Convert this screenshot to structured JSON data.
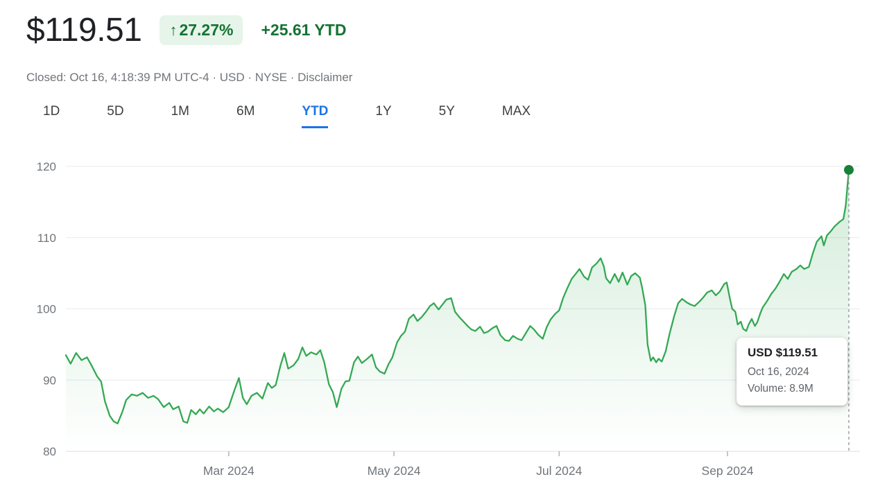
{
  "header": {
    "price": "$119.51",
    "change_badge": {
      "arrow": "↑",
      "percent": "27.27%"
    },
    "ytd_change": "+25.61 YTD",
    "status_text": "Closed: Oct 16, 4:18:39 PM UTC-4 · USD · NYSE · ",
    "disclaimer_label": "Disclaimer"
  },
  "tabs": {
    "items": [
      "1D",
      "5D",
      "1M",
      "6M",
      "YTD",
      "1Y",
      "5Y",
      "MAX"
    ],
    "active": "YTD"
  },
  "tooltip": {
    "title": "USD $119.51",
    "date": "Oct 16, 2024",
    "volume": "Volume: 8.9M"
  },
  "chart_data": {
    "type": "line",
    "title": "",
    "xlabel": "",
    "ylabel": "",
    "ylim": [
      80,
      120
    ],
    "yticks": [
      80,
      90,
      100,
      110,
      120
    ],
    "x_encoding": "fraction of YTD x-axis (Jan 2024 to Oct 16, 2024)",
    "xticks": [
      {
        "t": 0.208,
        "label": "Mar 2024"
      },
      {
        "t": 0.419,
        "label": "May 2024"
      },
      {
        "t": 0.63,
        "label": "Jul 2024"
      },
      {
        "t": 0.845,
        "label": "Sep 2024"
      }
    ],
    "grid": true,
    "legend": false,
    "colors": {
      "line": "#34a853",
      "dot": "#188038",
      "grid": "#e8eaed",
      "axis": "#dadce0",
      "axis_label": "#70757a",
      "dashed": "#9aa0a6",
      "accent_blue": "#1a73e8",
      "green_text": "#137333",
      "badge_bg": "#e6f4ea"
    },
    "last_point": {
      "t": 1.0,
      "price": 119.51,
      "date": "Oct 16, 2024",
      "volume": "8.9M"
    },
    "series": [
      {
        "name": "price",
        "points": [
          [
            0,
            93.5
          ],
          [
            0.006,
            92.3
          ],
          [
            0.013,
            93.8
          ],
          [
            0.02,
            92.8
          ],
          [
            0.027,
            93.2
          ],
          [
            0.033,
            92
          ],
          [
            0.04,
            90.5
          ],
          [
            0.045,
            89.8
          ],
          [
            0.05,
            87
          ],
          [
            0.056,
            85
          ],
          [
            0.061,
            84.2
          ],
          [
            0.066,
            83.9
          ],
          [
            0.072,
            85.5
          ],
          [
            0.077,
            87.2
          ],
          [
            0.084,
            88
          ],
          [
            0.091,
            87.8
          ],
          [
            0.098,
            88.2
          ],
          [
            0.105,
            87.5
          ],
          [
            0.112,
            87.8
          ],
          [
            0.118,
            87.3
          ],
          [
            0.125,
            86.2
          ],
          [
            0.132,
            86.8
          ],
          [
            0.137,
            85.9
          ],
          [
            0.144,
            86.3
          ],
          [
            0.15,
            84.2
          ],
          [
            0.155,
            84
          ],
          [
            0.16,
            85.8
          ],
          [
            0.166,
            85.2
          ],
          [
            0.171,
            85.9
          ],
          [
            0.176,
            85.3
          ],
          [
            0.183,
            86.3
          ],
          [
            0.189,
            85.6
          ],
          [
            0.194,
            86
          ],
          [
            0.201,
            85.5
          ],
          [
            0.208,
            86.2
          ],
          [
            0.215,
            88.5
          ],
          [
            0.221,
            90.3
          ],
          [
            0.226,
            87.5
          ],
          [
            0.231,
            86.6
          ],
          [
            0.237,
            87.8
          ],
          [
            0.244,
            88.2
          ],
          [
            0.251,
            87.4
          ],
          [
            0.258,
            89.6
          ],
          [
            0.263,
            88.9
          ],
          [
            0.268,
            89.3
          ],
          [
            0.274,
            92
          ],
          [
            0.279,
            93.8
          ],
          [
            0.284,
            91.6
          ],
          [
            0.291,
            92.1
          ],
          [
            0.297,
            93
          ],
          [
            0.302,
            94.6
          ],
          [
            0.307,
            93.4
          ],
          [
            0.313,
            93.9
          ],
          [
            0.32,
            93.6
          ],
          [
            0.325,
            94.2
          ],
          [
            0.33,
            92.5
          ],
          [
            0.336,
            89.4
          ],
          [
            0.341,
            88.3
          ],
          [
            0.346,
            86.2
          ],
          [
            0.352,
            88.8
          ],
          [
            0.357,
            89.8
          ],
          [
            0.362,
            89.9
          ],
          [
            0.368,
            92.5
          ],
          [
            0.373,
            93.3
          ],
          [
            0.378,
            92.4
          ],
          [
            0.385,
            93
          ],
          [
            0.391,
            93.6
          ],
          [
            0.396,
            91.8
          ],
          [
            0.401,
            91.2
          ],
          [
            0.407,
            90.9
          ],
          [
            0.412,
            92.2
          ],
          [
            0.417,
            93.2
          ],
          [
            0.423,
            95.3
          ],
          [
            0.428,
            96.2
          ],
          [
            0.433,
            96.8
          ],
          [
            0.438,
            98.6
          ],
          [
            0.444,
            99.2
          ],
          [
            0.449,
            98.3
          ],
          [
            0.454,
            98.8
          ],
          [
            0.46,
            99.6
          ],
          [
            0.465,
            100.4
          ],
          [
            0.47,
            100.8
          ],
          [
            0.476,
            99.9
          ],
          [
            0.481,
            100.6
          ],
          [
            0.486,
            101.3
          ],
          [
            0.492,
            101.5
          ],
          [
            0.497,
            99.6
          ],
          [
            0.502,
            98.9
          ],
          [
            0.508,
            98.2
          ],
          [
            0.513,
            97.6
          ],
          [
            0.518,
            97.1
          ],
          [
            0.523,
            96.9
          ],
          [
            0.529,
            97.5
          ],
          [
            0.534,
            96.6
          ],
          [
            0.539,
            96.8
          ],
          [
            0.545,
            97.3
          ],
          [
            0.55,
            97.6
          ],
          [
            0.555,
            96.3
          ],
          [
            0.561,
            95.6
          ],
          [
            0.566,
            95.5
          ],
          [
            0.571,
            96.2
          ],
          [
            0.577,
            95.8
          ],
          [
            0.582,
            95.6
          ],
          [
            0.587,
            96.5
          ],
          [
            0.593,
            97.6
          ],
          [
            0.598,
            97.1
          ],
          [
            0.603,
            96.4
          ],
          [
            0.609,
            95.8
          ],
          [
            0.614,
            97.4
          ],
          [
            0.619,
            98.5
          ],
          [
            0.625,
            99.3
          ],
          [
            0.63,
            99.8
          ],
          [
            0.635,
            101.5
          ],
          [
            0.64,
            102.8
          ],
          [
            0.646,
            104.2
          ],
          [
            0.651,
            104.9
          ],
          [
            0.656,
            105.6
          ],
          [
            0.662,
            104.5
          ],
          [
            0.667,
            104.1
          ],
          [
            0.672,
            105.8
          ],
          [
            0.678,
            106.4
          ],
          [
            0.683,
            107.1
          ],
          [
            0.687,
            106
          ],
          [
            0.69,
            104.3
          ],
          [
            0.695,
            103.6
          ],
          [
            0.701,
            104.9
          ],
          [
            0.706,
            103.8
          ],
          [
            0.711,
            105.1
          ],
          [
            0.717,
            103.4
          ],
          [
            0.722,
            104.6
          ],
          [
            0.727,
            105
          ],
          [
            0.733,
            104.4
          ],
          [
            0.736,
            103
          ],
          [
            0.74,
            100.5
          ],
          [
            0.743,
            95
          ],
          [
            0.747,
            92.7
          ],
          [
            0.75,
            93.2
          ],
          [
            0.754,
            92.5
          ],
          [
            0.757,
            93
          ],
          [
            0.761,
            92.6
          ],
          [
            0.766,
            94
          ],
          [
            0.771,
            96.5
          ],
          [
            0.777,
            99
          ],
          [
            0.782,
            100.8
          ],
          [
            0.787,
            101.4
          ],
          [
            0.793,
            100.9
          ],
          [
            0.798,
            100.6
          ],
          [
            0.803,
            100.4
          ],
          [
            0.809,
            101
          ],
          [
            0.814,
            101.6
          ],
          [
            0.819,
            102.3
          ],
          [
            0.825,
            102.6
          ],
          [
            0.83,
            101.9
          ],
          [
            0.835,
            102.4
          ],
          [
            0.841,
            103.5
          ],
          [
            0.844,
            103.7
          ],
          [
            0.848,
            101.5
          ],
          [
            0.851,
            100
          ],
          [
            0.855,
            99.6
          ],
          [
            0.858,
            97.8
          ],
          [
            0.862,
            98.2
          ],
          [
            0.865,
            97.2
          ],
          [
            0.869,
            96.9
          ],
          [
            0.872,
            97.8
          ],
          [
            0.876,
            98.6
          ],
          [
            0.88,
            97.6
          ],
          [
            0.883,
            98.1
          ],
          [
            0.887,
            99.4
          ],
          [
            0.89,
            100.2
          ],
          [
            0.895,
            101
          ],
          [
            0.901,
            102.1
          ],
          [
            0.906,
            102.8
          ],
          [
            0.911,
            103.7
          ],
          [
            0.917,
            104.9
          ],
          [
            0.922,
            104.2
          ],
          [
            0.927,
            105.2
          ],
          [
            0.933,
            105.6
          ],
          [
            0.938,
            106.1
          ],
          [
            0.943,
            105.6
          ],
          [
            0.949,
            105.9
          ],
          [
            0.954,
            107.8
          ],
          [
            0.959,
            109.4
          ],
          [
            0.965,
            110.2
          ],
          [
            0.968,
            108.9
          ],
          [
            0.972,
            110.3
          ],
          [
            0.977,
            110.9
          ],
          [
            0.982,
            111.6
          ],
          [
            0.988,
            112.2
          ],
          [
            0.993,
            112.6
          ],
          [
            0.996,
            114.5
          ],
          [
            1,
            119.51
          ]
        ]
      }
    ]
  }
}
